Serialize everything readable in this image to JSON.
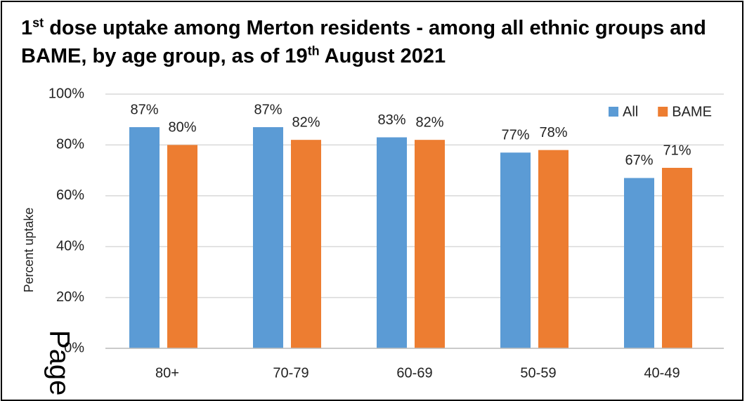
{
  "chart_data": {
    "type": "bar",
    "title": [
      {
        "text": "1"
      },
      {
        "text": "st",
        "sup": true
      },
      {
        "text": " dose uptake among Merton residents - among all ethnic groups and BAME, by age group, as of 19"
      },
      {
        "text": "th",
        "sup": true
      },
      {
        "text": " August 2021"
      }
    ],
    "y_label": "Percent uptake",
    "categories": [
      "80+",
      "70-79",
      "60-69",
      "50-59",
      "40-49"
    ],
    "series": [
      {
        "name": "All",
        "color": "#5b9bd5",
        "values": [
          87,
          87,
          83,
          77,
          67
        ],
        "value_labels": [
          "87%",
          "87%",
          "83%",
          "77%",
          "67%"
        ]
      },
      {
        "name": "BAME",
        "color": "#ed7d31",
        "values": [
          80,
          82,
          82,
          78,
          71
        ],
        "value_labels": [
          "80%",
          "82%",
          "82%",
          "78%",
          "71%"
        ]
      }
    ],
    "ylim": [
      0,
      100
    ],
    "yticks": [
      {
        "value": 0,
        "label": "0%"
      },
      {
        "value": 20,
        "label": "20%"
      },
      {
        "value": 40,
        "label": "40%"
      },
      {
        "value": 60,
        "label": "60%"
      },
      {
        "value": 80,
        "label": "80%"
      },
      {
        "value": 100,
        "label": "100%"
      }
    ],
    "grid": true,
    "legend": "top-right",
    "watermark": "Page"
  }
}
